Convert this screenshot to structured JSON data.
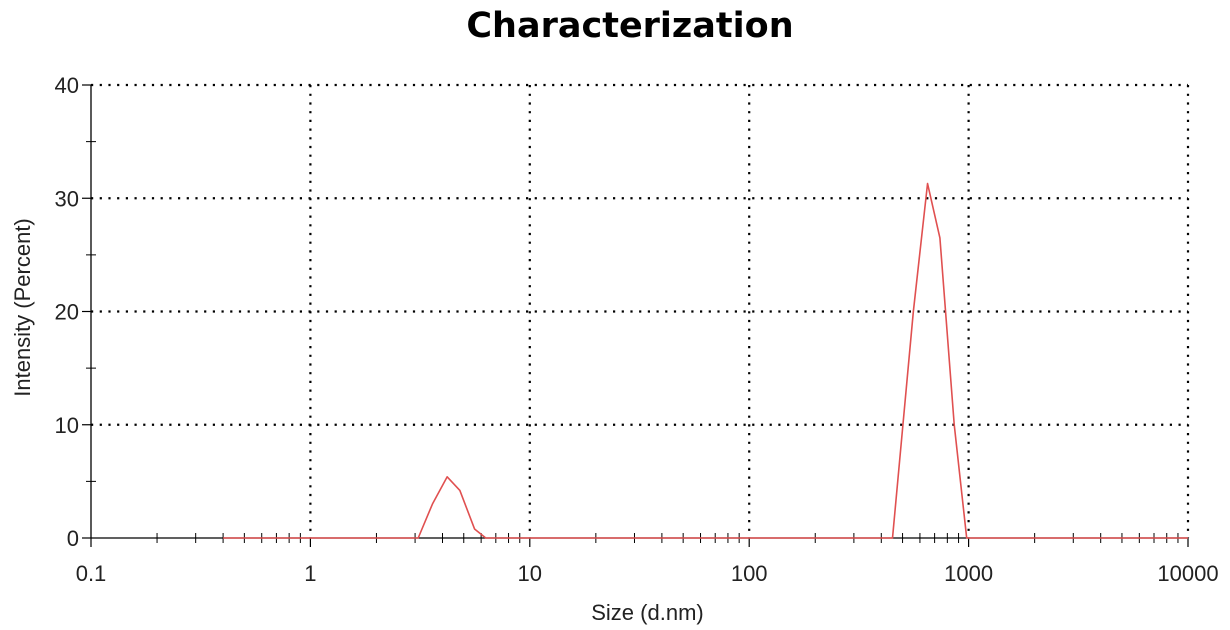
{
  "chart_data": {
    "type": "line",
    "title": "Characterization",
    "xlabel": "Size (d.nm)",
    "ylabel": "Intensity (Percent)",
    "x_scale": "log",
    "xlim": [
      0.1,
      10000
    ],
    "ylim": [
      0,
      40
    ],
    "x_ticks": [
      "0.1",
      "1",
      "10",
      "100",
      "1000",
      "10000"
    ],
    "y_ticks": [
      "0",
      "10",
      "20",
      "30",
      "40"
    ],
    "grid": true,
    "grid_style": "dotted",
    "series": [
      {
        "color": "#e05050",
        "x": [
          0.4,
          3.1,
          3.6,
          4.2,
          4.8,
          5.6,
          6.3,
          450,
          560,
          650,
          740,
          860,
          980,
          10000
        ],
        "y": [
          0,
          0,
          3,
          5.4,
          4.2,
          0.8,
          0,
          0,
          20,
          31.3,
          26.5,
          10,
          0,
          0
        ]
      }
    ]
  }
}
